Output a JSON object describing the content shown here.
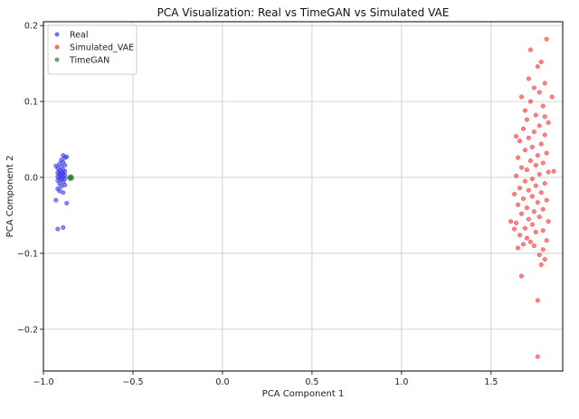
{
  "chart_data": {
    "type": "scatter",
    "title": "PCA Visualization: Real vs TimeGAN vs Simulated VAE",
    "xlabel": "PCA Component 1",
    "ylabel": "PCA Component 2",
    "xlim": [
      -1.0,
      1.9
    ],
    "ylim": [
      -0.255,
      0.205
    ],
    "xticks": [
      -1.0,
      -0.5,
      0.0,
      0.5,
      1.0,
      1.5
    ],
    "xtick_labels": [
      "−1.0",
      "−0.5",
      "0.0",
      "0.5",
      "1.0",
      "1.5"
    ],
    "yticks": [
      -0.2,
      -0.1,
      0.0,
      0.1,
      0.2
    ],
    "ytick_labels": [
      "−0.2",
      "−0.1",
      "0.0",
      "0.1",
      "0.2"
    ],
    "grid": true,
    "legend_position": "top-left",
    "series": [
      {
        "name": "Real",
        "color": "#3333ee",
        "points": [
          [
            -0.92,
            -0.068
          ],
          [
            -0.89,
            -0.066
          ],
          [
            -0.87,
            -0.034
          ],
          [
            -0.93,
            -0.03
          ],
          [
            -0.92,
            -0.015
          ],
          [
            -0.9,
            -0.012
          ],
          [
            -0.88,
            -0.01
          ],
          [
            -0.91,
            -0.008
          ],
          [
            -0.89,
            -0.006
          ],
          [
            -0.92,
            -0.004
          ],
          [
            -0.9,
            -0.003
          ],
          [
            -0.88,
            -0.002
          ],
          [
            -0.91,
            -0.001
          ],
          [
            -0.89,
            0.0
          ],
          [
            -0.92,
            0.001
          ],
          [
            -0.9,
            0.002
          ],
          [
            -0.88,
            0.003
          ],
          [
            -0.91,
            0.004
          ],
          [
            -0.89,
            0.005
          ],
          [
            -0.92,
            0.006
          ],
          [
            -0.9,
            0.007
          ],
          [
            -0.88,
            0.008
          ],
          [
            -0.91,
            0.009
          ],
          [
            -0.89,
            0.01
          ],
          [
            -0.92,
            0.012
          ],
          [
            -0.9,
            0.014
          ],
          [
            -0.88,
            0.016
          ],
          [
            -0.91,
            0.018
          ],
          [
            -0.89,
            0.02
          ],
          [
            -0.9,
            0.023
          ],
          [
            -0.88,
            0.026
          ],
          [
            -0.89,
            0.029
          ],
          [
            -0.87,
            0.027
          ],
          [
            -0.91,
            -0.018
          ],
          [
            -0.89,
            -0.02
          ],
          [
            -0.93,
            0.015
          ]
        ]
      },
      {
        "name": "Simulated_VAE",
        "color": "#ee3333",
        "points": [
          [
            1.76,
            -0.236
          ],
          [
            1.76,
            -0.162
          ],
          [
            1.67,
            -0.13
          ],
          [
            1.78,
            -0.115
          ],
          [
            1.8,
            -0.108
          ],
          [
            1.77,
            -0.102
          ],
          [
            1.79,
            -0.095
          ],
          [
            1.65,
            -0.093
          ],
          [
            1.74,
            -0.09
          ],
          [
            1.68,
            -0.088
          ],
          [
            1.72,
            -0.085
          ],
          [
            1.81,
            -0.083
          ],
          [
            1.7,
            -0.08
          ],
          [
            1.66,
            -0.076
          ],
          [
            1.75,
            -0.072
          ],
          [
            1.79,
            -0.07
          ],
          [
            1.69,
            -0.067
          ],
          [
            1.73,
            -0.062
          ],
          [
            1.64,
            -0.06
          ],
          [
            1.82,
            -0.058
          ],
          [
            1.71,
            -0.055
          ],
          [
            1.77,
            -0.052
          ],
          [
            1.61,
            -0.058
          ],
          [
            1.67,
            -0.048
          ],
          [
            1.74,
            -0.045
          ],
          [
            1.79,
            -0.042
          ],
          [
            1.7,
            -0.04
          ],
          [
            1.65,
            -0.036
          ],
          [
            1.76,
            -0.033
          ],
          [
            1.81,
            -0.03
          ],
          [
            1.68,
            -0.028
          ],
          [
            1.73,
            -0.025
          ],
          [
            1.63,
            -0.022
          ],
          [
            1.78,
            -0.02
          ],
          [
            1.71,
            -0.017
          ],
          [
            1.66,
            -0.014
          ],
          [
            1.75,
            -0.011
          ],
          [
            1.8,
            -0.008
          ],
          [
            1.69,
            -0.005
          ],
          [
            1.73,
            -0.002
          ],
          [
            1.64,
            0.002
          ],
          [
            1.77,
            0.004
          ],
          [
            1.82,
            0.007
          ],
          [
            1.7,
            0.01
          ],
          [
            1.67,
            0.013
          ],
          [
            1.75,
            0.016
          ],
          [
            1.79,
            0.019
          ],
          [
            1.72,
            0.022
          ],
          [
            1.65,
            0.026
          ],
          [
            1.76,
            0.029
          ],
          [
            1.81,
            0.032
          ],
          [
            1.69,
            0.036
          ],
          [
            1.73,
            0.04
          ],
          [
            1.78,
            0.044
          ],
          [
            1.66,
            0.048
          ],
          [
            1.71,
            0.052
          ],
          [
            1.8,
            0.056
          ],
          [
            1.74,
            0.06
          ],
          [
            1.68,
            0.064
          ],
          [
            1.77,
            0.068
          ],
          [
            1.82,
            0.072
          ],
          [
            1.7,
            0.076
          ],
          [
            1.75,
            0.082
          ],
          [
            1.69,
            0.088
          ],
          [
            1.79,
            0.094
          ],
          [
            1.72,
            0.1
          ],
          [
            1.84,
            0.106
          ],
          [
            1.77,
            0.112
          ],
          [
            1.74,
            0.118
          ],
          [
            1.8,
            0.124
          ],
          [
            1.71,
            0.13
          ],
          [
            1.76,
            0.146
          ],
          [
            1.78,
            0.152
          ],
          [
            1.72,
            0.168
          ],
          [
            1.81,
            0.182
          ],
          [
            1.64,
            0.054
          ],
          [
            1.85,
            0.008
          ],
          [
            1.63,
            -0.068
          ],
          [
            1.8,
            0.08
          ],
          [
            1.67,
            0.106
          ]
        ]
      },
      {
        "name": "TimeGAN",
        "color": "#2e7d32",
        "points": [
          [
            -0.85,
            0.0
          ],
          [
            -0.84,
            -0.001
          ],
          [
            -0.845,
            0.001
          ],
          [
            -0.855,
            0.0
          ],
          [
            -0.85,
            -0.002
          ]
        ]
      }
    ]
  }
}
